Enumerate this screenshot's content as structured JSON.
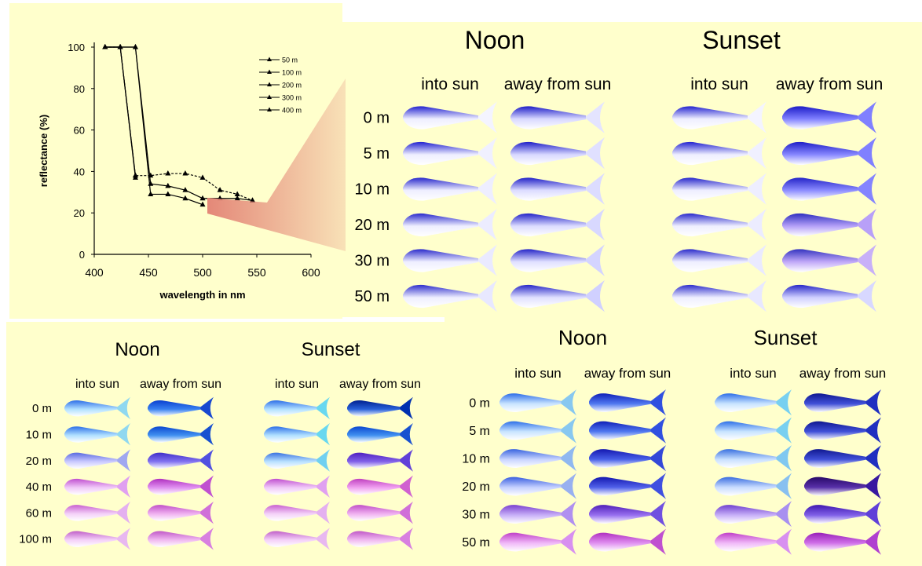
{
  "colors": {
    "panel_bg": "#ffffcc",
    "line": "#000000",
    "highlight_wedge": "#e48878"
  },
  "chart_data": {
    "type": "line",
    "title": "",
    "xlabel": "wavelength in nm",
    "ylabel": "reflectance (%)",
    "xlim": [
      400,
      600
    ],
    "ylim": [
      0,
      100
    ],
    "xticks": [
      "400",
      "450",
      "500",
      "550",
      "600"
    ],
    "yticks": [
      "0",
      "20",
      "40",
      "60",
      "80",
      "100"
    ],
    "legend_position": "top-right",
    "grid": false,
    "series": [
      {
        "name": "50 m",
        "x": [
          410,
          424,
          438,
          452,
          468,
          484,
          500,
          516,
          532,
          546
        ],
        "y": [
          100,
          100,
          38,
          38,
          39,
          39,
          37,
          31,
          29,
          26
        ]
      },
      {
        "name": "100 m",
        "x": [
          410,
          424,
          438,
          452,
          468,
          484,
          500,
          516,
          532,
          546
        ],
        "y": [
          100,
          100,
          100,
          34,
          33,
          31,
          27,
          27,
          27,
          26
        ]
      },
      {
        "name": "200 m",
        "x": [
          410,
          424,
          438,
          452,
          468,
          484,
          500
        ],
        "y": [
          100,
          100,
          100,
          29,
          29,
          27,
          24
        ]
      },
      {
        "name": "300 m",
        "x": [
          410,
          424,
          438
        ],
        "y": [
          100,
          100,
          37
        ]
      },
      {
        "name": "400 m",
        "x": [
          410,
          424,
          438
        ],
        "y": [
          100,
          100,
          38
        ]
      }
    ]
  },
  "panels": [
    {
      "title_noon": "Noon",
      "title_sunset": "Sunset",
      "col_into": "into sun",
      "col_away": "away from sun",
      "depths": [
        "0 m",
        "5 m",
        "10 m",
        "20 m",
        "30 m",
        "50 m"
      ],
      "fish": {
        "noon_into": [
          [
            "#2424d0",
            "#eeeeff",
            "#f4f4ff"
          ],
          [
            "#2424d0",
            "#eeeeff",
            "#f0f0ff"
          ],
          [
            "#2828cc",
            "#eeeeff",
            "#eeeeff"
          ],
          [
            "#2a2acc",
            "#eeeeff",
            "#ececff"
          ],
          [
            "#2c2ccc",
            "#eeeeff",
            "#eaeaff"
          ],
          [
            "#2e2ecc",
            "#eeeeff",
            "#e8e8ff"
          ]
        ],
        "noon_away": [
          [
            "#1e1ec8",
            "#d8d8ff",
            "#e4e4ff"
          ],
          [
            "#2020c8",
            "#d8d8ff",
            "#e0e0ff"
          ],
          [
            "#2222c8",
            "#dcdcff",
            "#dcdcff"
          ],
          [
            "#2424c8",
            "#dcdcff",
            "#d8d8ff"
          ],
          [
            "#2626c8",
            "#e0e0ff",
            "#d4d4ff"
          ],
          [
            "#2828c8",
            "#e0e0ff",
            "#d0d0ff"
          ]
        ],
        "sunset_into": [
          [
            "#2424d0",
            "#eeeeff",
            "#f4f4ff"
          ],
          [
            "#2424d0",
            "#eeeeff",
            "#f0f0ff"
          ],
          [
            "#2828cc",
            "#eeeeff",
            "#eeeeff"
          ],
          [
            "#2a2acc",
            "#eeeeff",
            "#ececff"
          ],
          [
            "#2c2ccc",
            "#eeeeff",
            "#eaeaff"
          ],
          [
            "#2e2ecc",
            "#eeeeff",
            "#e8e8ff"
          ]
        ],
        "sunset_away": [
          [
            "#1c1cc8",
            "#8080ff",
            "#8080ff"
          ],
          [
            "#2020c8",
            "#8888ff",
            "#8080ff"
          ],
          [
            "#2424c8",
            "#8c8cff",
            "#8484ff"
          ],
          [
            "#3030c0",
            "#b4a0f8",
            "#b8a0f8"
          ],
          [
            "#3434c0",
            "#c0a8f8",
            "#c8b0f8"
          ],
          [
            "#2828c8",
            "#d0d0ff",
            "#d8d8ff"
          ]
        ]
      }
    },
    {
      "title_noon": "Noon",
      "title_sunset": "Sunset",
      "col_into": "into sun",
      "col_away": "away from sun",
      "depths": [
        "0 m",
        "10 m",
        "20 m",
        "40 m",
        "60 m",
        "100 m"
      ],
      "fish": {
        "noon_into": [
          [
            "#2e6ee8",
            "#b0e0ff",
            "#90d8f0"
          ],
          [
            "#2e70e8",
            "#b0e0ff",
            "#90d8f0"
          ],
          [
            "#5a6ae0",
            "#c8c8ff",
            "#a0a8f0"
          ],
          [
            "#c050d0",
            "#f0c8f8",
            "#e0a0f0"
          ],
          [
            "#c860d0",
            "#f4d0f8",
            "#e4b0f0"
          ],
          [
            "#c060c8",
            "#f4d0f8",
            "#e8b8f0"
          ]
        ],
        "noon_away": [
          [
            "#0a40d0",
            "#3880f0",
            "#1848d0"
          ],
          [
            "#0c48d0",
            "#4090f0",
            "#1850d0"
          ],
          [
            "#4030c8",
            "#8070f0",
            "#5050e0"
          ],
          [
            "#b030c0",
            "#e090f0",
            "#c050d0"
          ],
          [
            "#c050c8",
            "#f0b0f0",
            "#d070d8"
          ],
          [
            "#c058c8",
            "#f0b8f0",
            "#d880e0"
          ]
        ],
        "sunset_into": [
          [
            "#2e6ee8",
            "#b0e0ff",
            "#68d8f0"
          ],
          [
            "#2e70e8",
            "#b0e0ff",
            "#68d8f0"
          ],
          [
            "#3a72e0",
            "#b8e0ff",
            "#70d0f0"
          ],
          [
            "#c050d0",
            "#f0c8f8",
            "#e0a0f0"
          ],
          [
            "#c860d0",
            "#f4d0f8",
            "#e4b0f0"
          ],
          [
            "#c060c8",
            "#f4d0f8",
            "#e8b8f0"
          ]
        ],
        "sunset_away": [
          [
            "#002090",
            "#2860d8",
            "#0030b0"
          ],
          [
            "#0c48d0",
            "#4090f0",
            "#1850d0"
          ],
          [
            "#5020c0",
            "#8060e8",
            "#6040d8"
          ],
          [
            "#c040c0",
            "#f0a0f0",
            "#d060d0"
          ],
          [
            "#c050c8",
            "#f0b0f0",
            "#d070d8"
          ],
          [
            "#c058c8",
            "#f0b8f0",
            "#d880e0"
          ]
        ]
      }
    },
    {
      "title_noon": "Noon",
      "title_sunset": "Sunset",
      "col_into": "into sun",
      "col_away": "away from sun",
      "depths": [
        "0 m",
        "5 m",
        "10 m",
        "20 m",
        "30 m",
        "50 m"
      ],
      "fish": {
        "noon_into": [
          [
            "#2e6ee8",
            "#c8e4ff",
            "#88c8f0"
          ],
          [
            "#2e70e8",
            "#c8e4ff",
            "#88c8f0"
          ],
          [
            "#3a64e0",
            "#c8d4ff",
            "#90b8f0"
          ],
          [
            "#3a5ee0",
            "#c4d0ff",
            "#98b0f0"
          ],
          [
            "#7a40d0",
            "#c8b0f8",
            "#b090f0"
          ],
          [
            "#c040c8",
            "#f0b8f8",
            "#d890f0"
          ]
        ],
        "noon_away": [
          [
            "#1020b8",
            "#5078f0",
            "#3050e0"
          ],
          [
            "#1020b8",
            "#5078f0",
            "#3050e0"
          ],
          [
            "#1418b0",
            "#4860e8",
            "#3448d8"
          ],
          [
            "#1418b0",
            "#5060e8",
            "#4050e0"
          ],
          [
            "#5020b8",
            "#9870f0",
            "#7050e0"
          ],
          [
            "#b030c0",
            "#e090f0",
            "#c050d0"
          ]
        ],
        "sunset_into": [
          [
            "#2e6ee8",
            "#c8e4ff",
            "#78d0f0"
          ],
          [
            "#2e70e8",
            "#c8e4ff",
            "#78d0f0"
          ],
          [
            "#3a70e0",
            "#c8e0ff",
            "#80c8f0"
          ],
          [
            "#3a6ce0",
            "#c8dcff",
            "#88c0f0"
          ],
          [
            "#7040d0",
            "#c8b0f8",
            "#a890f0"
          ],
          [
            "#c040c8",
            "#f0b8f8",
            "#d890f0"
          ]
        ],
        "sunset_away": [
          [
            "#101890",
            "#4050d8",
            "#2030c0"
          ],
          [
            "#101890",
            "#4050d8",
            "#2030c0"
          ],
          [
            "#101890",
            "#4050d8",
            "#2030c0"
          ],
          [
            "#280868",
            "#5830a8",
            "#3818a0"
          ],
          [
            "#4018b0",
            "#8060e8",
            "#6040d8"
          ],
          [
            "#9820b8",
            "#d070e8",
            "#b040d0"
          ]
        ]
      }
    }
  ]
}
